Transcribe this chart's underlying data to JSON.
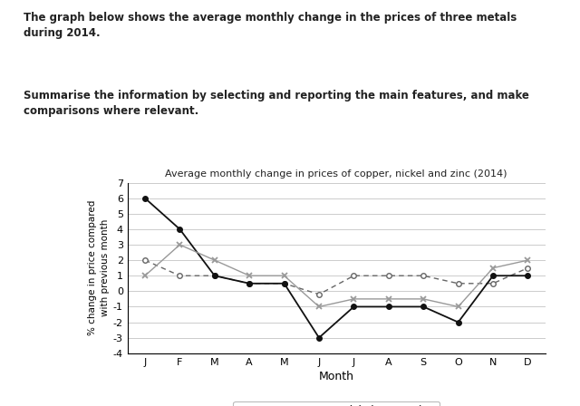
{
  "title": "Average monthly change in prices of copper, nickel and zinc (2014)",
  "xlabel": "Month",
  "ylabel": "% change in price compared\nwith previous month",
  "months": [
    "J",
    "F",
    "M",
    "A",
    "M",
    "J",
    "J",
    "A",
    "S",
    "O",
    "N",
    "D"
  ],
  "copper": [
    2.0,
    1.0,
    1.0,
    0.5,
    0.5,
    -0.2,
    1.0,
    1.0,
    1.0,
    0.5,
    0.5,
    1.5
  ],
  "nickel": [
    6.0,
    4.0,
    1.0,
    0.5,
    0.5,
    -3.0,
    -1.0,
    -1.0,
    -1.0,
    -2.0,
    1.0,
    1.0
  ],
  "zinc": [
    1.0,
    3.0,
    2.0,
    1.0,
    1.0,
    -1.0,
    -0.5,
    -0.5,
    -0.5,
    -1.0,
    1.5,
    2.0
  ],
  "ylim": [
    -4,
    7
  ],
  "yticks": [
    -4,
    -3,
    -2,
    -1,
    0,
    1,
    2,
    3,
    4,
    5,
    6,
    7
  ],
  "header_text1": "The graph below shows the average monthly change in the prices of three metals\nduring 2014.",
  "header_text2": "Summarise the information by selecting and reporting the main features, and make\ncomparisons where relevant.",
  "bg_color": "#ffffff",
  "grid_color": "#cccccc",
  "text_color": "#222222",
  "copper_color": "#666666",
  "nickel_color": "#111111",
  "zinc_color": "#999999"
}
